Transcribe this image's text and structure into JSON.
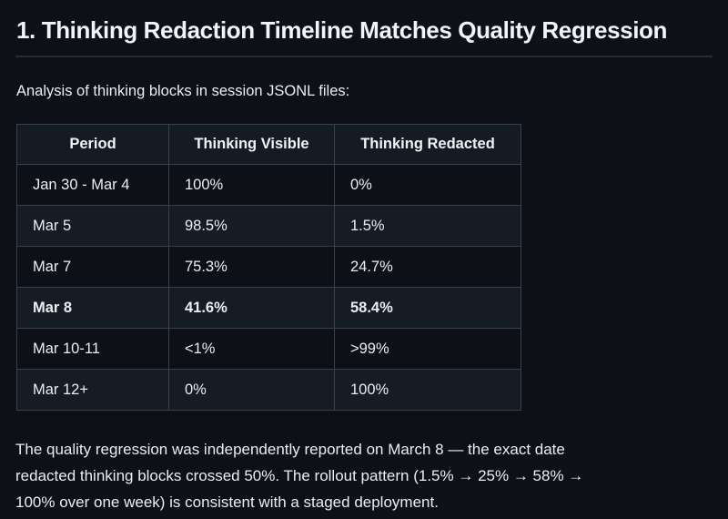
{
  "heading": "1. Thinking Redaction Timeline Matches Quality Regression",
  "intro": "Analysis of thinking blocks in session JSONL files:",
  "table": {
    "columns": [
      "Period",
      "Thinking Visible",
      "Thinking Redacted"
    ],
    "rows": [
      {
        "period": "Jan 30 - Mar 4",
        "visible": "100%",
        "redacted": "0%"
      },
      {
        "period": "Mar 5",
        "visible": "98.5%",
        "redacted": "1.5%"
      },
      {
        "period": "Mar 7",
        "visible": "75.3%",
        "redacted": "24.7%"
      },
      {
        "period": "Mar 8",
        "visible": "41.6%",
        "redacted": "58.4%"
      },
      {
        "period": "Mar 10-11",
        "visible": "<1%",
        "redacted": ">99%"
      },
      {
        "period": "Mar 12+",
        "visible": "0%",
        "redacted": "100%"
      }
    ],
    "emphasized_row": "Mar 8"
  },
  "conclusion": {
    "lines": [
      "The quality regression was independently reported on March 8 — the exact date",
      "redacted thinking blocks crossed 50%. The rollout pattern (1.5% → 25% → 58% →",
      "100% over one week) is consistent with a staged deployment."
    ],
    "full_text": "The quality regression was independently reported on March 8 — the exact date redacted thinking blocks crossed 50%. The rollout pattern (1.5% → 25% → 58% → 100% over one week) is consistent with a staged deployment."
  },
  "colors": {
    "page_background": "#0d1117",
    "row_alternate_background": "#161c24",
    "header_background": "#151b23",
    "table_border": "#3a414b",
    "heading_divider": "#262c35",
    "text": "#e9eef4"
  }
}
